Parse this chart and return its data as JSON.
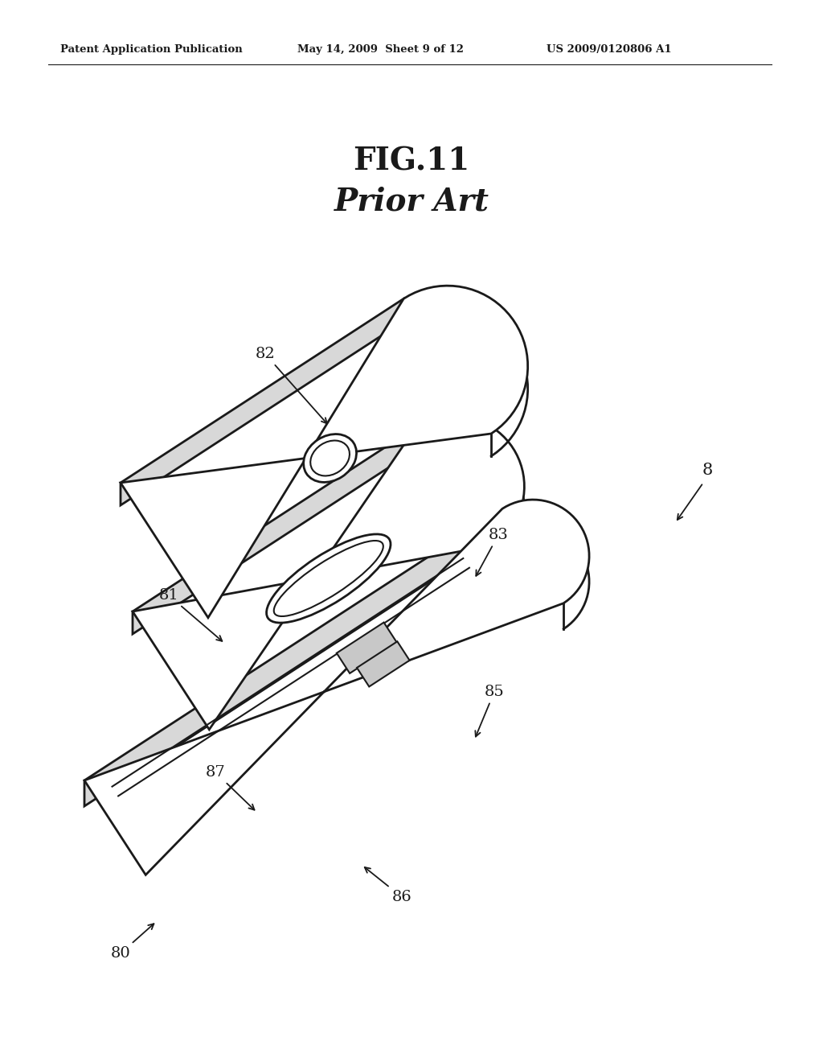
{
  "bg_color": "#ffffff",
  "header_left": "Patent Application Publication",
  "header_center": "May 14, 2009  Sheet 9 of 12",
  "header_right": "US 2009/0120806 A1",
  "fig_title_line1": "FIG.11",
  "fig_title_line2": "Prior Art",
  "lw": 1.5,
  "lw2": 2.0,
  "black": "#1a1a1a"
}
